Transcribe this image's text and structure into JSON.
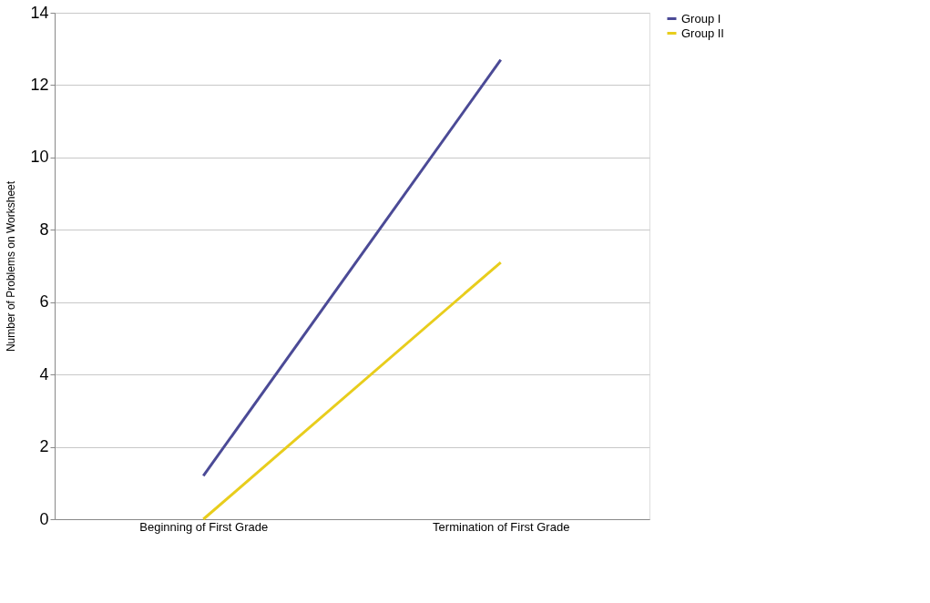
{
  "chart_data": {
    "type": "line",
    "ylabel": "Number of Problems on Worksheet",
    "categories": [
      "Beginning of First Grade",
      "Termination of First Grade"
    ],
    "series": [
      {
        "name": "Group I",
        "color": "#4b4a96",
        "values": [
          1.2,
          12.7
        ]
      },
      {
        "name": "Group II",
        "color": "#e8cd1c",
        "values": [
          0,
          7.1
        ]
      }
    ],
    "ylim": [
      0,
      14
    ],
    "yticks": [
      0,
      2,
      4,
      6,
      8,
      10,
      12,
      14
    ],
    "grid": "y",
    "legend": "right",
    "marker": "none",
    "line_style": "solid"
  }
}
